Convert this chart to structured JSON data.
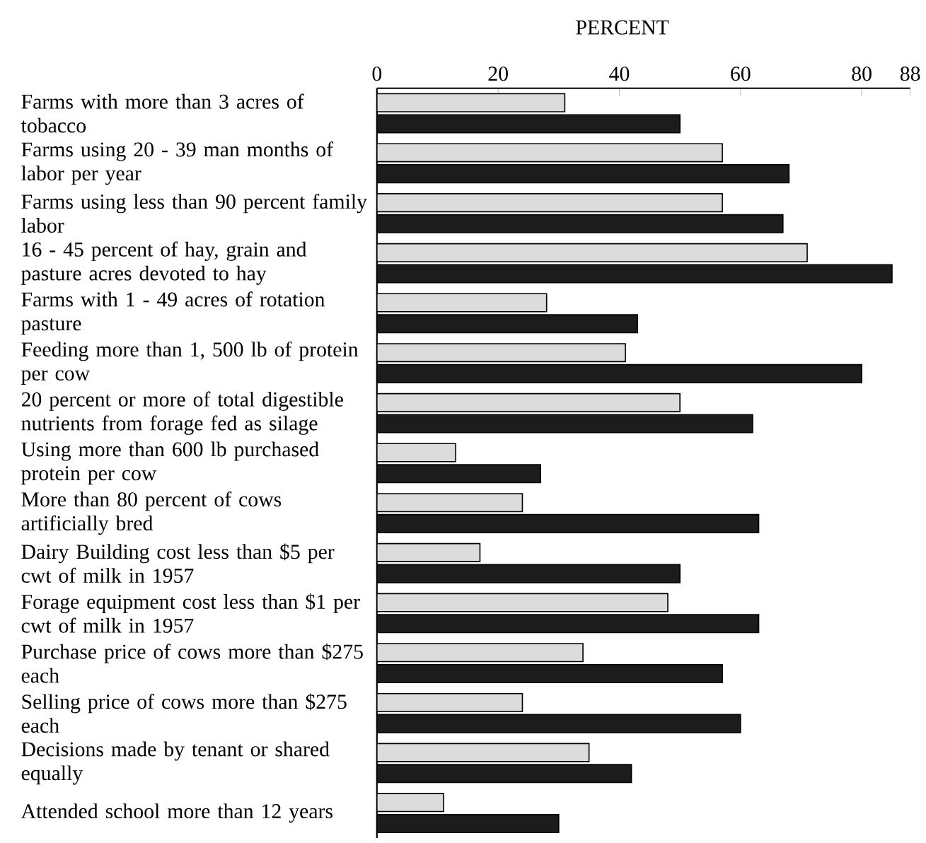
{
  "chart_data": {
    "type": "bar",
    "orientation": "horizontal",
    "xlabel": "PERCENT",
    "categories": [
      "Farms with more than 3 acres of tobacco",
      "Farms using 20 - 39 man months of labor per year",
      "Farms using less than 90 percent family labor",
      "16 - 45 percent of hay, grain and pasture acres devoted to hay",
      "Farms with 1 - 49 acres of rotation pasture",
      "Feeding more than 1, 500 lb  of protein per cow",
      "20 percent or more of total digestible nutrients from forage fed as silage",
      "Using more than 600 lb purchased protein per cow",
      "More than 80 percent of cows artificially bred",
      "Dairy Building cost less than $5 per cwt of milk in 1957",
      "Forage equipment cost less than $1 per cwt of milk in 1957",
      "Purchase price of cows more than $275 each",
      "Selling price of cows more than $275 each",
      "Decisions made by tenant or shared equally",
      "Attended school more than 12 years"
    ],
    "series": [
      {
        "color": "#dcdcdc",
        "values": [
          31,
          57,
          57,
          71,
          28,
          41,
          50,
          13,
          24,
          17,
          48,
          34,
          24,
          35,
          11
        ]
      },
      {
        "color": "#1c1c1c",
        "values": [
          50,
          68,
          67,
          85,
          43,
          80,
          62,
          27,
          63,
          50,
          63,
          57,
          60,
          42,
          30
        ]
      }
    ],
    "xlim": [
      0,
      88
    ],
    "xticks": [
      0,
      20,
      40,
      60,
      80,
      88
    ]
  }
}
